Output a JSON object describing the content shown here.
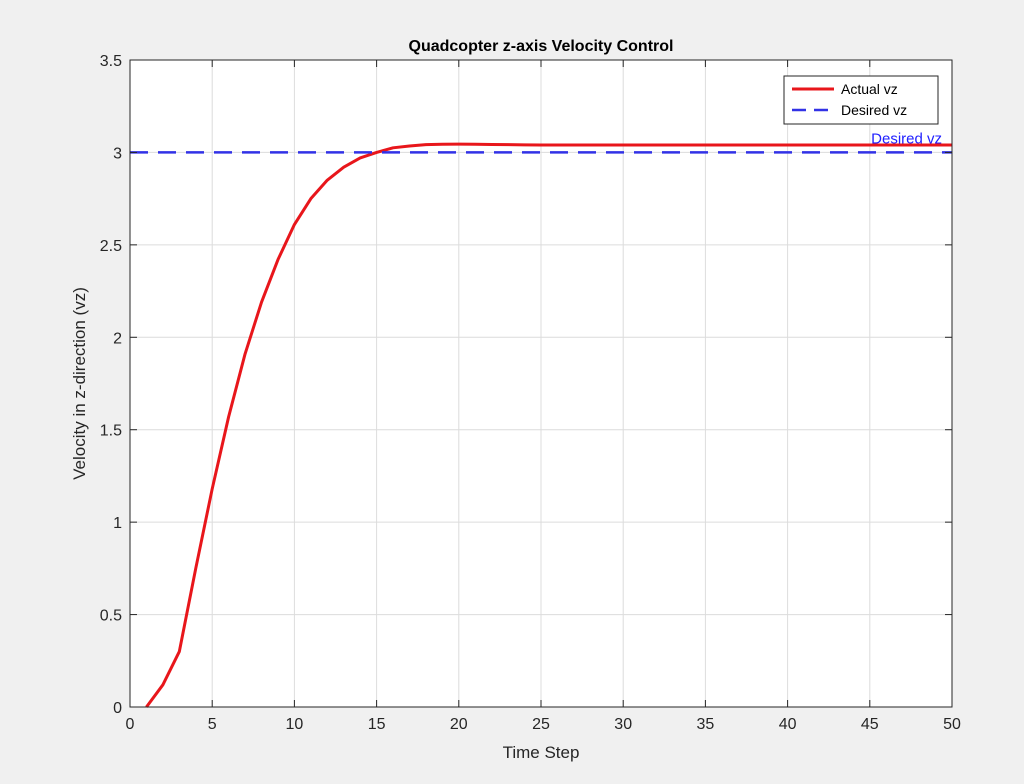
{
  "chart_data": {
    "type": "line",
    "title": "Quadcopter z-axis Velocity Control",
    "xlabel": "Time Step",
    "ylabel": "Velocity in z-direction (vz)",
    "xlim": [
      0,
      50
    ],
    "ylim": [
      0,
      3.5
    ],
    "xticks": [
      0,
      5,
      10,
      15,
      20,
      25,
      30,
      35,
      40,
      45,
      50
    ],
    "xtick_labels": [
      "0",
      "5",
      "10",
      "15",
      "20",
      "25",
      "30",
      "35",
      "40",
      "45",
      "50"
    ],
    "yticks": [
      0,
      0.5,
      1,
      1.5,
      2,
      2.5,
      3,
      3.5
    ],
    "ytick_labels": [
      "0",
      "0.5",
      "1",
      "1.5",
      "2",
      "2.5",
      "3",
      "3.5"
    ],
    "grid": true,
    "legend_position": "top-right",
    "series": [
      {
        "name": "Actual vz",
        "color": "#e8161b",
        "style": "solid",
        "x": [
          1,
          2,
          3,
          4,
          5,
          6,
          7,
          8,
          9,
          10,
          11,
          12,
          13,
          14,
          15,
          16,
          17,
          18,
          19,
          20,
          21,
          22,
          23,
          24,
          25,
          26,
          27,
          28,
          29,
          30,
          31,
          32,
          33,
          34,
          35,
          36,
          37,
          38,
          39,
          40,
          41,
          42,
          43,
          44,
          45,
          46,
          47,
          48,
          49,
          50
        ],
        "y": [
          0,
          0.12,
          0.3,
          0.75,
          1.18,
          1.57,
          1.91,
          2.19,
          2.42,
          2.61,
          2.75,
          2.85,
          2.92,
          2.97,
          3.0,
          3.025,
          3.035,
          3.042,
          3.044,
          3.045,
          3.044,
          3.043,
          3.042,
          3.041,
          3.04,
          3.04,
          3.04,
          3.04,
          3.04,
          3.04,
          3.04,
          3.04,
          3.04,
          3.04,
          3.04,
          3.04,
          3.04,
          3.04,
          3.04,
          3.04,
          3.04,
          3.04,
          3.04,
          3.04,
          3.04,
          3.04,
          3.04,
          3.04,
          3.04,
          3.04
        ]
      },
      {
        "name": "Desired vz",
        "color": "#3232e6",
        "style": "dashed",
        "x": [
          0,
          50
        ],
        "y": [
          3,
          3
        ]
      }
    ],
    "annotations": [
      {
        "text": "Desired vz",
        "x": 50,
        "y": 3,
        "color": "#2020ff",
        "anchor": "end"
      }
    ]
  }
}
